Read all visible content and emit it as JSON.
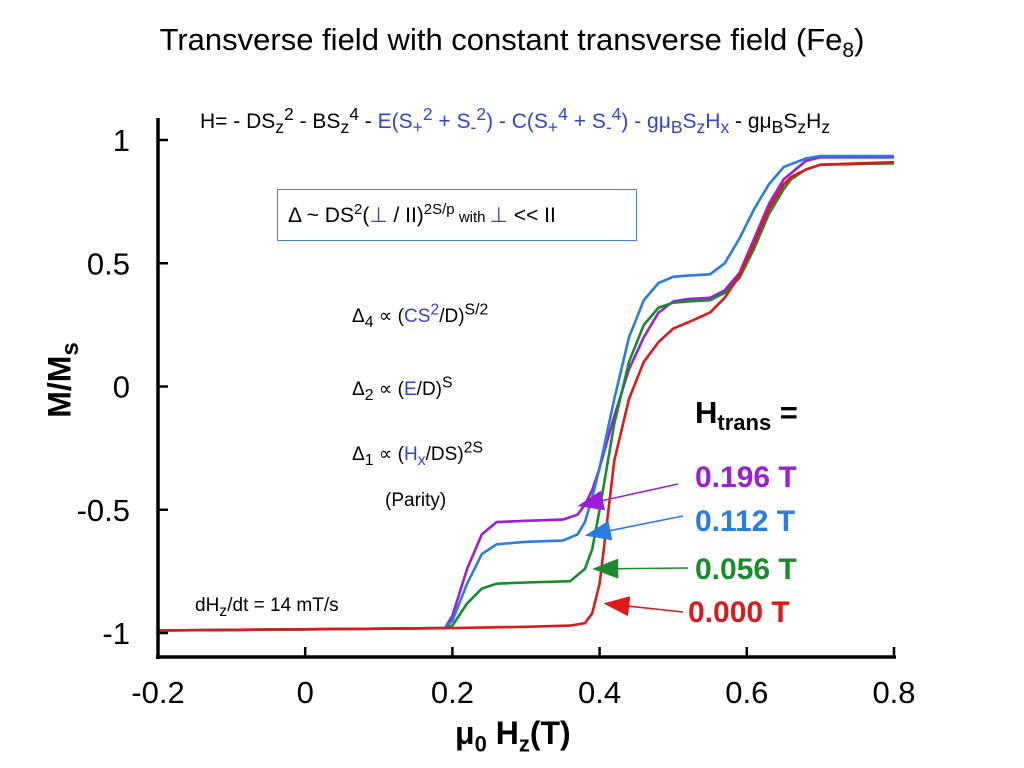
{
  "chart_data": {
    "type": "line",
    "title_main": "Transverse field with constant transverse field (Fe",
    "title_sub": "8",
    "title_close": ")",
    "xlabel_mu": "μ",
    "xlabel_sub0": "0",
    "xlabel_H": " H",
    "xlabel_subz": "z",
    "xlabel_unit": "(T)",
    "ylabel": "M/M",
    "ylabel_sub": "s",
    "xlim": [
      -0.2,
      0.8
    ],
    "ylim": [
      -1,
      1
    ],
    "xticks": [
      "-0.2",
      "0",
      "0.2",
      "0.4",
      "0.6",
      "0.8"
    ],
    "yticks": [
      "1",
      "0.5",
      "0",
      "-0.5",
      "-1"
    ],
    "xtick_values": [
      -0.2,
      0,
      0.2,
      0.4,
      0.6,
      0.8
    ],
    "ytick_values": [
      1,
      0.5,
      0,
      -0.5,
      -1
    ],
    "legend_title": "H",
    "legend_title_sub": "trans",
    "legend_title_eq": " =",
    "series": [
      {
        "name": "0.196 T",
        "color": "#9b1fd6",
        "x": [
          -0.2,
          0.0,
          0.19,
          0.2,
          0.22,
          0.24,
          0.26,
          0.3,
          0.35,
          0.37,
          0.38,
          0.39,
          0.4,
          0.42,
          0.44,
          0.46,
          0.48,
          0.5,
          0.52,
          0.55,
          0.57,
          0.59,
          0.61,
          0.63,
          0.65,
          0.68,
          0.7,
          0.8
        ],
        "y": [
          -0.99,
          -0.985,
          -0.98,
          -0.93,
          -0.74,
          -0.6,
          -0.55,
          -0.545,
          -0.54,
          -0.52,
          -0.48,
          -0.42,
          -0.33,
          -0.12,
          0.07,
          0.2,
          0.3,
          0.345,
          0.355,
          0.36,
          0.39,
          0.46,
          0.6,
          0.74,
          0.84,
          0.915,
          0.93,
          0.93
        ]
      },
      {
        "name": "0.112 T",
        "color": "#2a7de0",
        "x": [
          -0.2,
          0.0,
          0.19,
          0.2,
          0.22,
          0.24,
          0.26,
          0.3,
          0.35,
          0.37,
          0.38,
          0.39,
          0.4,
          0.42,
          0.44,
          0.46,
          0.48,
          0.5,
          0.52,
          0.55,
          0.57,
          0.59,
          0.61,
          0.63,
          0.65,
          0.68,
          0.7,
          0.8
        ],
        "y": [
          -0.99,
          -0.985,
          -0.98,
          -0.95,
          -0.8,
          -0.68,
          -0.64,
          -0.63,
          -0.625,
          -0.6,
          -0.55,
          -0.45,
          -0.33,
          -0.05,
          0.2,
          0.35,
          0.42,
          0.445,
          0.45,
          0.455,
          0.5,
          0.6,
          0.72,
          0.82,
          0.89,
          0.925,
          0.935,
          0.935
        ]
      },
      {
        "name": "0.056 T",
        "color": "#1a8a2a",
        "x": [
          -0.2,
          0.0,
          0.19,
          0.2,
          0.22,
          0.24,
          0.26,
          0.3,
          0.36,
          0.38,
          0.39,
          0.4,
          0.42,
          0.44,
          0.46,
          0.48,
          0.5,
          0.52,
          0.55,
          0.57,
          0.59,
          0.61,
          0.63,
          0.65,
          0.66,
          0.68,
          0.7,
          0.8
        ],
        "y": [
          -0.99,
          -0.985,
          -0.98,
          -0.97,
          -0.88,
          -0.82,
          -0.8,
          -0.795,
          -0.79,
          -0.74,
          -0.66,
          -0.5,
          -0.15,
          0.1,
          0.25,
          0.32,
          0.34,
          0.345,
          0.35,
          0.38,
          0.44,
          0.56,
          0.7,
          0.8,
          0.84,
          0.88,
          0.9,
          0.905
        ]
      },
      {
        "name": "0.000 T",
        "color": "#dd1a1a",
        "x": [
          -0.2,
          0.0,
          0.2,
          0.3,
          0.36,
          0.38,
          0.39,
          0.4,
          0.41,
          0.42,
          0.44,
          0.46,
          0.48,
          0.5,
          0.52,
          0.55,
          0.57,
          0.59,
          0.61,
          0.63,
          0.65,
          0.66,
          0.68,
          0.7,
          0.8
        ],
        "y": [
          -0.99,
          -0.985,
          -0.98,
          -0.975,
          -0.97,
          -0.96,
          -0.92,
          -0.8,
          -0.55,
          -0.3,
          -0.05,
          0.1,
          0.18,
          0.235,
          0.26,
          0.3,
          0.36,
          0.45,
          0.58,
          0.72,
          0.82,
          0.85,
          0.88,
          0.9,
          0.91
        ]
      }
    ],
    "annotations": {
      "hamiltonian": {
        "p1": "H= - DS",
        "p1s": "z",
        "p1e": "2",
        "p2": " - BS",
        "p2s": "z",
        "p2e": "4",
        "p3": " - ",
        "p4": "E(S",
        "p4s": "+",
        "p4e": "2",
        "p5": " + S",
        "p5s": "-",
        "p5e": "2",
        "p6": ") - C(S",
        "p6s": "+",
        "p6e": "4",
        "p7": " + S",
        "p7s": "-",
        "p7e": "4",
        "p8": ") - gμ",
        "p8s": "B",
        "p9": "S",
        "p9s": "z",
        "p10": "H",
        "p10s": "x",
        "p11": " - gμ",
        "p11s": "B",
        "p12": "S",
        "p12s": "z",
        "p13": "H",
        "p13s": "z"
      },
      "box": {
        "a": "Δ ~ DS",
        "ae": "2",
        "b": "(",
        "perp1": "⊥",
        "c": " / II)",
        "ce": "2S/p",
        "with": " with ",
        "perp2": "⊥",
        "d": " << II"
      },
      "delta4": {
        "a": "Δ",
        "as": "4",
        "b": " ∝ (",
        "c": "CS",
        "ce": "2",
        "d": "/D)",
        "de": "S/2"
      },
      "delta2": {
        "a": "Δ",
        "as": "2",
        "b": " ∝ (",
        "c": "E",
        "d": "/D)",
        "de": "S"
      },
      "delta1": {
        "a": "Δ",
        "as": "1",
        "b": " ∝ (",
        "c": "H",
        "cs": "x",
        "d": "/DS)",
        "de": "2S"
      },
      "parity": "(Parity)",
      "rate": {
        "a": "dH",
        "as": "z",
        "b": "/dt = 14 mT/s"
      }
    }
  }
}
